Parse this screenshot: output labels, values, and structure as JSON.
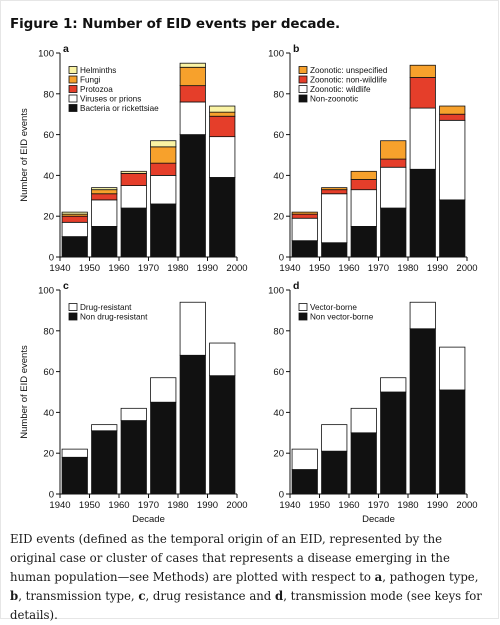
{
  "figure_title": "Figure 1: Number of EID events per decade.",
  "caption": {
    "intro": "EID events (defined as the temporal origin of an EID, represented by the original case or cluster of cases that represents a disease emerging in the human population—see Methods) are plotted with respect to ",
    "a": "a",
    "a_text": ", pathogen type, ",
    "b": "b",
    "b_text": ", transmission type, ",
    "c": "c",
    "c_text": ", drug resistance and ",
    "d": "d",
    "d_text": ", transmission mode (see keys for details)."
  },
  "chart_data": [
    {
      "panel": "a",
      "type": "bar",
      "stacked": true,
      "categories": [
        "1940",
        "1950",
        "1960",
        "1970",
        "1980",
        "1990"
      ],
      "xticks": [
        "1940",
        "1950",
        "1960",
        "1970",
        "1980",
        "1990",
        "2000"
      ],
      "xlabel": "",
      "ylabel": "Number of EID events",
      "ylim": [
        0,
        100
      ],
      "yticks": [
        0,
        20,
        40,
        60,
        80,
        100
      ],
      "legend_placement": "top-left",
      "series": [
        {
          "name": "Bacteria or rickettsiae",
          "color": "#111111",
          "values": [
            10,
            15,
            24,
            26,
            60,
            39
          ]
        },
        {
          "name": "Viruses or prions",
          "color": "#ffffff",
          "values": [
            7,
            13,
            11,
            14,
            16,
            20
          ]
        },
        {
          "name": "Protozoa",
          "color": "#e53e2a",
          "values": [
            3,
            3,
            6,
            6,
            8,
            10
          ]
        },
        {
          "name": "Fungi",
          "color": "#f7a12c",
          "values": [
            1,
            2,
            0,
            8,
            9,
            2
          ]
        },
        {
          "name": "Helminths",
          "color": "#faf3a4",
          "values": [
            1,
            1,
            1,
            3,
            2,
            3
          ]
        }
      ]
    },
    {
      "panel": "b",
      "type": "bar",
      "stacked": true,
      "categories": [
        "1940",
        "1950",
        "1960",
        "1970",
        "1980",
        "1990"
      ],
      "xticks": [
        "1940",
        "1950",
        "1960",
        "1970",
        "1980",
        "1990",
        "2000"
      ],
      "xlabel": "",
      "ylabel": "",
      "ylim": [
        0,
        100
      ],
      "yticks": [
        0,
        20,
        40,
        60,
        80,
        100
      ],
      "legend_placement": "top-left",
      "series": [
        {
          "name": "Non-zoonotic",
          "color": "#111111",
          "values": [
            8,
            7,
            15,
            24,
            43,
            28
          ]
        },
        {
          "name": "Zoonotic: wildlife",
          "color": "#ffffff",
          "values": [
            11,
            24,
            18,
            20,
            30,
            39
          ]
        },
        {
          "name": "Zoonotic: non-wildlife",
          "color": "#e53e2a",
          "values": [
            2,
            2,
            5,
            4,
            15,
            3
          ]
        },
        {
          "name": "Zoonotic: unspecified",
          "color": "#f7a12c",
          "values": [
            1,
            1,
            4,
            9,
            6,
            4
          ]
        }
      ]
    },
    {
      "panel": "c",
      "type": "bar",
      "stacked": true,
      "categories": [
        "1940",
        "1950",
        "1960",
        "1970",
        "1980",
        "1990"
      ],
      "xticks": [
        "1940",
        "1950",
        "1960",
        "1970",
        "1980",
        "1990",
        "2000"
      ],
      "xlabel": "Decade",
      "ylabel": "Number of EID events",
      "ylim": [
        0,
        100
      ],
      "yticks": [
        0,
        20,
        40,
        60,
        80,
        100
      ],
      "legend_placement": "top-left",
      "series": [
        {
          "name": "Non drug-resistant",
          "color": "#111111",
          "values": [
            18,
            31,
            36,
            45,
            68,
            58
          ]
        },
        {
          "name": "Drug-resistant",
          "color": "#ffffff",
          "values": [
            4,
            3,
            6,
            12,
            26,
            16
          ]
        }
      ]
    },
    {
      "panel": "d",
      "type": "bar",
      "stacked": true,
      "categories": [
        "1940",
        "1950",
        "1960",
        "1970",
        "1980",
        "1990"
      ],
      "xticks": [
        "1940",
        "1950",
        "1960",
        "1970",
        "1980",
        "1990",
        "2000"
      ],
      "xlabel": "Decade",
      "ylabel": "",
      "ylim": [
        0,
        100
      ],
      "yticks": [
        0,
        20,
        40,
        60,
        80,
        100
      ],
      "legend_placement": "top-left",
      "series": [
        {
          "name": "Non vector-borne",
          "color": "#111111",
          "values": [
            12,
            21,
            30,
            50,
            81,
            51
          ]
        },
        {
          "name": "Vector-borne",
          "color": "#ffffff",
          "values": [
            10,
            13,
            12,
            7,
            13,
            21
          ]
        }
      ]
    }
  ]
}
